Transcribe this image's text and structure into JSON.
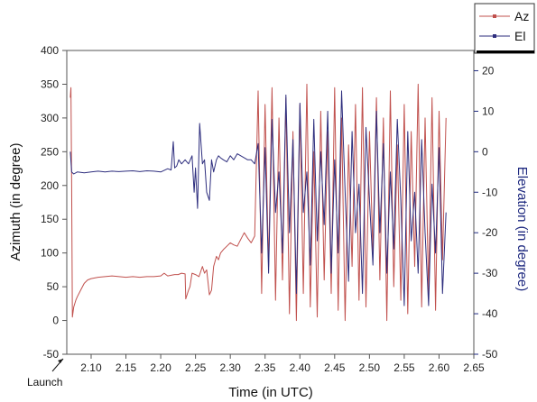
{
  "chart_data": {
    "type": "line",
    "title": "",
    "xlabel": "Time (in UTC)",
    "ylabel_left": "Azimuth (in degree)",
    "ylabel_right": "Elevation (in degree)",
    "xlim": [
      2.065,
      2.65
    ],
    "ylim_left": [
      -50,
      400
    ],
    "ylim_right": [
      -50,
      25
    ],
    "x_ticks": [
      "2.10",
      "2.15",
      "2.20",
      "2.25",
      "2.30",
      "2.35",
      "2.40",
      "2.45",
      "2.50",
      "2.55",
      "2.60",
      "2.65"
    ],
    "y_ticks_left": [
      "-50",
      "0",
      "50",
      "100",
      "150",
      "200",
      "250",
      "300",
      "350",
      "400"
    ],
    "y_ticks_right": [
      "-50",
      "-40",
      "-30",
      "-20",
      "-10",
      "0",
      "10",
      "20"
    ],
    "grid": false,
    "legend_position": "top-right-outside",
    "annotation": {
      "text": "Launch",
      "x": 2.07
    },
    "series": [
      {
        "name": "Az",
        "axis": "left",
        "color": "#c0504d",
        "x": [
          2.07,
          2.071,
          2.072,
          2.073,
          2.075,
          2.078,
          2.08,
          2.085,
          2.09,
          2.095,
          2.1,
          2.11,
          2.12,
          2.13,
          2.14,
          2.15,
          2.16,
          2.17,
          2.18,
          2.19,
          2.2,
          2.205,
          2.21,
          2.215,
          2.22,
          2.225,
          2.23,
          2.235,
          2.236,
          2.24,
          2.242,
          2.245,
          2.25,
          2.255,
          2.26,
          2.263,
          2.266,
          2.27,
          2.273,
          2.276,
          2.28,
          2.283,
          2.286,
          2.29,
          2.295,
          2.3,
          2.305,
          2.31,
          2.315,
          2.32,
          2.325,
          2.33,
          2.335,
          2.34,
          2.345,
          2.35,
          2.355,
          2.36,
          2.365,
          2.37,
          2.375,
          2.38,
          2.385,
          2.39,
          2.395,
          2.4,
          2.405,
          2.41,
          2.415,
          2.42,
          2.425,
          2.43,
          2.435,
          2.44,
          2.445,
          2.45,
          2.455,
          2.46,
          2.465,
          2.47,
          2.475,
          2.48,
          2.485,
          2.49,
          2.495,
          2.5,
          2.505,
          2.51,
          2.515,
          2.52,
          2.525,
          2.53,
          2.535,
          2.54,
          2.545,
          2.55,
          2.555,
          2.56,
          2.565,
          2.57,
          2.575,
          2.58,
          2.585,
          2.59,
          2.595,
          2.6,
          2.605,
          2.61
        ],
        "values": [
          330,
          345,
          200,
          5,
          20,
          30,
          35,
          45,
          55,
          60,
          62,
          64,
          65,
          66,
          65,
          64,
          65,
          64,
          65,
          65,
          66,
          70,
          66,
          67,
          68,
          68,
          70,
          69,
          32,
          45,
          50,
          70,
          68,
          65,
          80,
          70,
          75,
          38,
          45,
          80,
          95,
          90,
          100,
          105,
          110,
          115,
          112,
          110,
          120,
          130,
          122,
          115,
          125,
          340,
          40,
          320,
          80,
          345,
          30,
          300,
          60,
          330,
          10,
          280,
          0,
          320,
          40,
          350,
          20,
          250,
          5,
          310,
          60,
          280,
          40,
          345,
          15,
          300,
          0,
          260,
          80,
          320,
          30,
          345,
          20,
          280,
          100,
          330,
          60,
          300,
          0,
          340,
          50,
          260,
          30,
          320,
          10,
          280,
          80,
          350,
          20,
          300,
          40,
          330,
          15,
          310,
          90,
          300
        ]
      },
      {
        "name": "El",
        "axis": "right",
        "color": "#2e2e7e",
        "x": [
          2.07,
          2.072,
          2.075,
          2.08,
          2.09,
          2.1,
          2.11,
          2.12,
          2.13,
          2.14,
          2.15,
          2.16,
          2.17,
          2.18,
          2.19,
          2.2,
          2.21,
          2.215,
          2.218,
          2.22,
          2.223,
          2.226,
          2.23,
          2.235,
          2.24,
          2.245,
          2.248,
          2.25,
          2.253,
          2.256,
          2.26,
          2.263,
          2.266,
          2.268,
          2.27,
          2.273,
          2.276,
          2.28,
          2.283,
          2.286,
          2.29,
          2.295,
          2.3,
          2.305,
          2.31,
          2.315,
          2.32,
          2.325,
          2.33,
          2.335,
          2.34,
          2.345,
          2.35,
          2.355,
          2.36,
          2.365,
          2.37,
          2.375,
          2.38,
          2.385,
          2.39,
          2.395,
          2.4,
          2.405,
          2.41,
          2.415,
          2.42,
          2.425,
          2.43,
          2.435,
          2.44,
          2.445,
          2.45,
          2.455,
          2.46,
          2.465,
          2.47,
          2.475,
          2.48,
          2.485,
          2.49,
          2.495,
          2.5,
          2.505,
          2.51,
          2.515,
          2.52,
          2.525,
          2.53,
          2.535,
          2.54,
          2.545,
          2.55,
          2.555,
          2.56,
          2.565,
          2.57,
          2.575,
          2.58,
          2.585,
          2.59,
          2.595,
          2.6,
          2.605,
          2.61
        ],
        "values": [
          0,
          -5,
          -5.5,
          -5,
          -5.2,
          -5,
          -4.8,
          -5,
          -4.8,
          -4.9,
          -4.8,
          -4.7,
          -4.9,
          -4.7,
          -4.8,
          -5,
          -4.2,
          -4.5,
          2.5,
          -4,
          -3.5,
          -2,
          -3,
          -2,
          -3,
          -1,
          -10,
          -4,
          -14,
          7,
          -3,
          -2,
          -10,
          -11,
          -12,
          -2,
          -5,
          -2,
          -1,
          -1.5,
          -2,
          -2.5,
          -1,
          -2,
          -0.5,
          -1,
          -1.5,
          -2,
          -2,
          -3,
          2,
          -25,
          1,
          -30,
          8,
          -15,
          -5,
          -25,
          14,
          -20,
          3,
          -35,
          12,
          -15,
          -5,
          -28,
          8,
          -22,
          0,
          -18,
          10,
          -30,
          -2,
          -25,
          15,
          -10,
          -32,
          5,
          -20,
          -8,
          -35,
          6,
          -12,
          -28,
          10,
          -20,
          2,
          -30,
          -5,
          -24,
          8,
          -12,
          -38,
          5,
          -22,
          -10,
          -30,
          3,
          -20,
          -38,
          -8,
          -25,
          1,
          -35,
          -15
        ]
      }
    ]
  }
}
